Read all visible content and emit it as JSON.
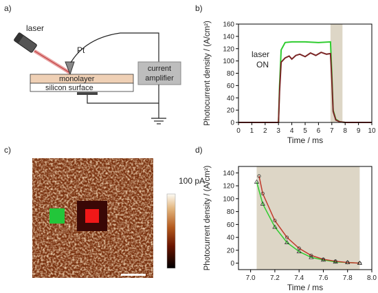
{
  "panels": {
    "a": {
      "label": "a)",
      "laser_label": "laser",
      "pt_label": "Pt",
      "monolayer_label": "monolayer",
      "silicon_label": "silicon surface",
      "amplifier_label_1": "current",
      "amplifier_label_2": "amplifier"
    },
    "b": {
      "label": "b)"
    },
    "c": {
      "label": "c)",
      "colorbar_label": "100 pA"
    },
    "d": {
      "label": "d)"
    }
  },
  "chart_data": [
    {
      "panel": "b",
      "type": "line",
      "xlabel": "Time / ms",
      "ylabel": "Photocurrent density / (A/cm²)",
      "xlim": [
        0,
        10
      ],
      "ylim": [
        0,
        160
      ],
      "x_ticks": [
        "0",
        "1",
        "2",
        "3",
        "4",
        "5",
        "6",
        "7",
        "8",
        "9",
        "10"
      ],
      "y_ticks": [
        "0",
        "20",
        "40",
        "60",
        "80",
        "100",
        "120",
        "140",
        "160"
      ],
      "shaded_region": [
        6.9,
        7.8
      ],
      "annotation_line1": "laser",
      "annotation_line2": "ON",
      "colors": {
        "green": "#2ecc2e",
        "red": "#7a2525",
        "shade": "#ddd6c6"
      },
      "series": [
        {
          "x": [
            0,
            3.0,
            3.08,
            3.2,
            3.5,
            4.0,
            5.0,
            6.0,
            6.9,
            7.0,
            7.1,
            7.3,
            7.6,
            8.0,
            10
          ],
          "values": [
            0,
            0,
            60,
            118,
            130,
            131,
            131,
            130,
            131,
            80,
            20,
            5,
            1,
            0,
            0
          ]
        },
        {
          "x": [
            0,
            3.0,
            3.08,
            3.2,
            3.5,
            3.8,
            4.0,
            4.3,
            4.6,
            5.0,
            5.4,
            5.8,
            6.2,
            6.6,
            6.9,
            7.0,
            7.1,
            7.3,
            7.6,
            8.0,
            10
          ],
          "values": [
            0,
            0,
            50,
            98,
            105,
            108,
            103,
            109,
            111,
            107,
            113,
            109,
            114,
            111,
            112,
            70,
            18,
            4,
            1,
            0,
            0
          ]
        }
      ]
    },
    {
      "panel": "d",
      "type": "line",
      "xlabel": "Time / ms",
      "ylabel": "Photocurrent density / (A/cm²)",
      "xlim": [
        6.9,
        8.0
      ],
      "ylim": [
        -10,
        150
      ],
      "x_ticks": [
        "7.0",
        "7.2",
        "7.4",
        "7.6",
        "7.8",
        "8.0"
      ],
      "y_ticks": [
        "0",
        "20",
        "40",
        "60",
        "80",
        "100",
        "120",
        "140"
      ],
      "shaded_region": [
        7.05,
        7.9
      ],
      "colors": {
        "green": "#2ecc2e",
        "red": "#c0392b",
        "shade": "#ddd6c6",
        "fit": "#222222"
      },
      "series": [
        {
          "x": [
            7.05,
            7.1,
            7.2,
            7.3,
            7.4,
            7.5,
            7.6,
            7.7,
            7.8,
            7.9
          ],
          "values": [
            126,
            92,
            56,
            32,
            18,
            9,
            5,
            2,
            1,
            0
          ]
        },
        {
          "x": [
            7.07,
            7.1,
            7.2,
            7.3,
            7.4,
            7.5,
            7.6,
            7.7,
            7.8,
            7.9
          ],
          "values": [
            135,
            108,
            66,
            40,
            23,
            12,
            6,
            3,
            1,
            0
          ]
        }
      ]
    }
  ]
}
